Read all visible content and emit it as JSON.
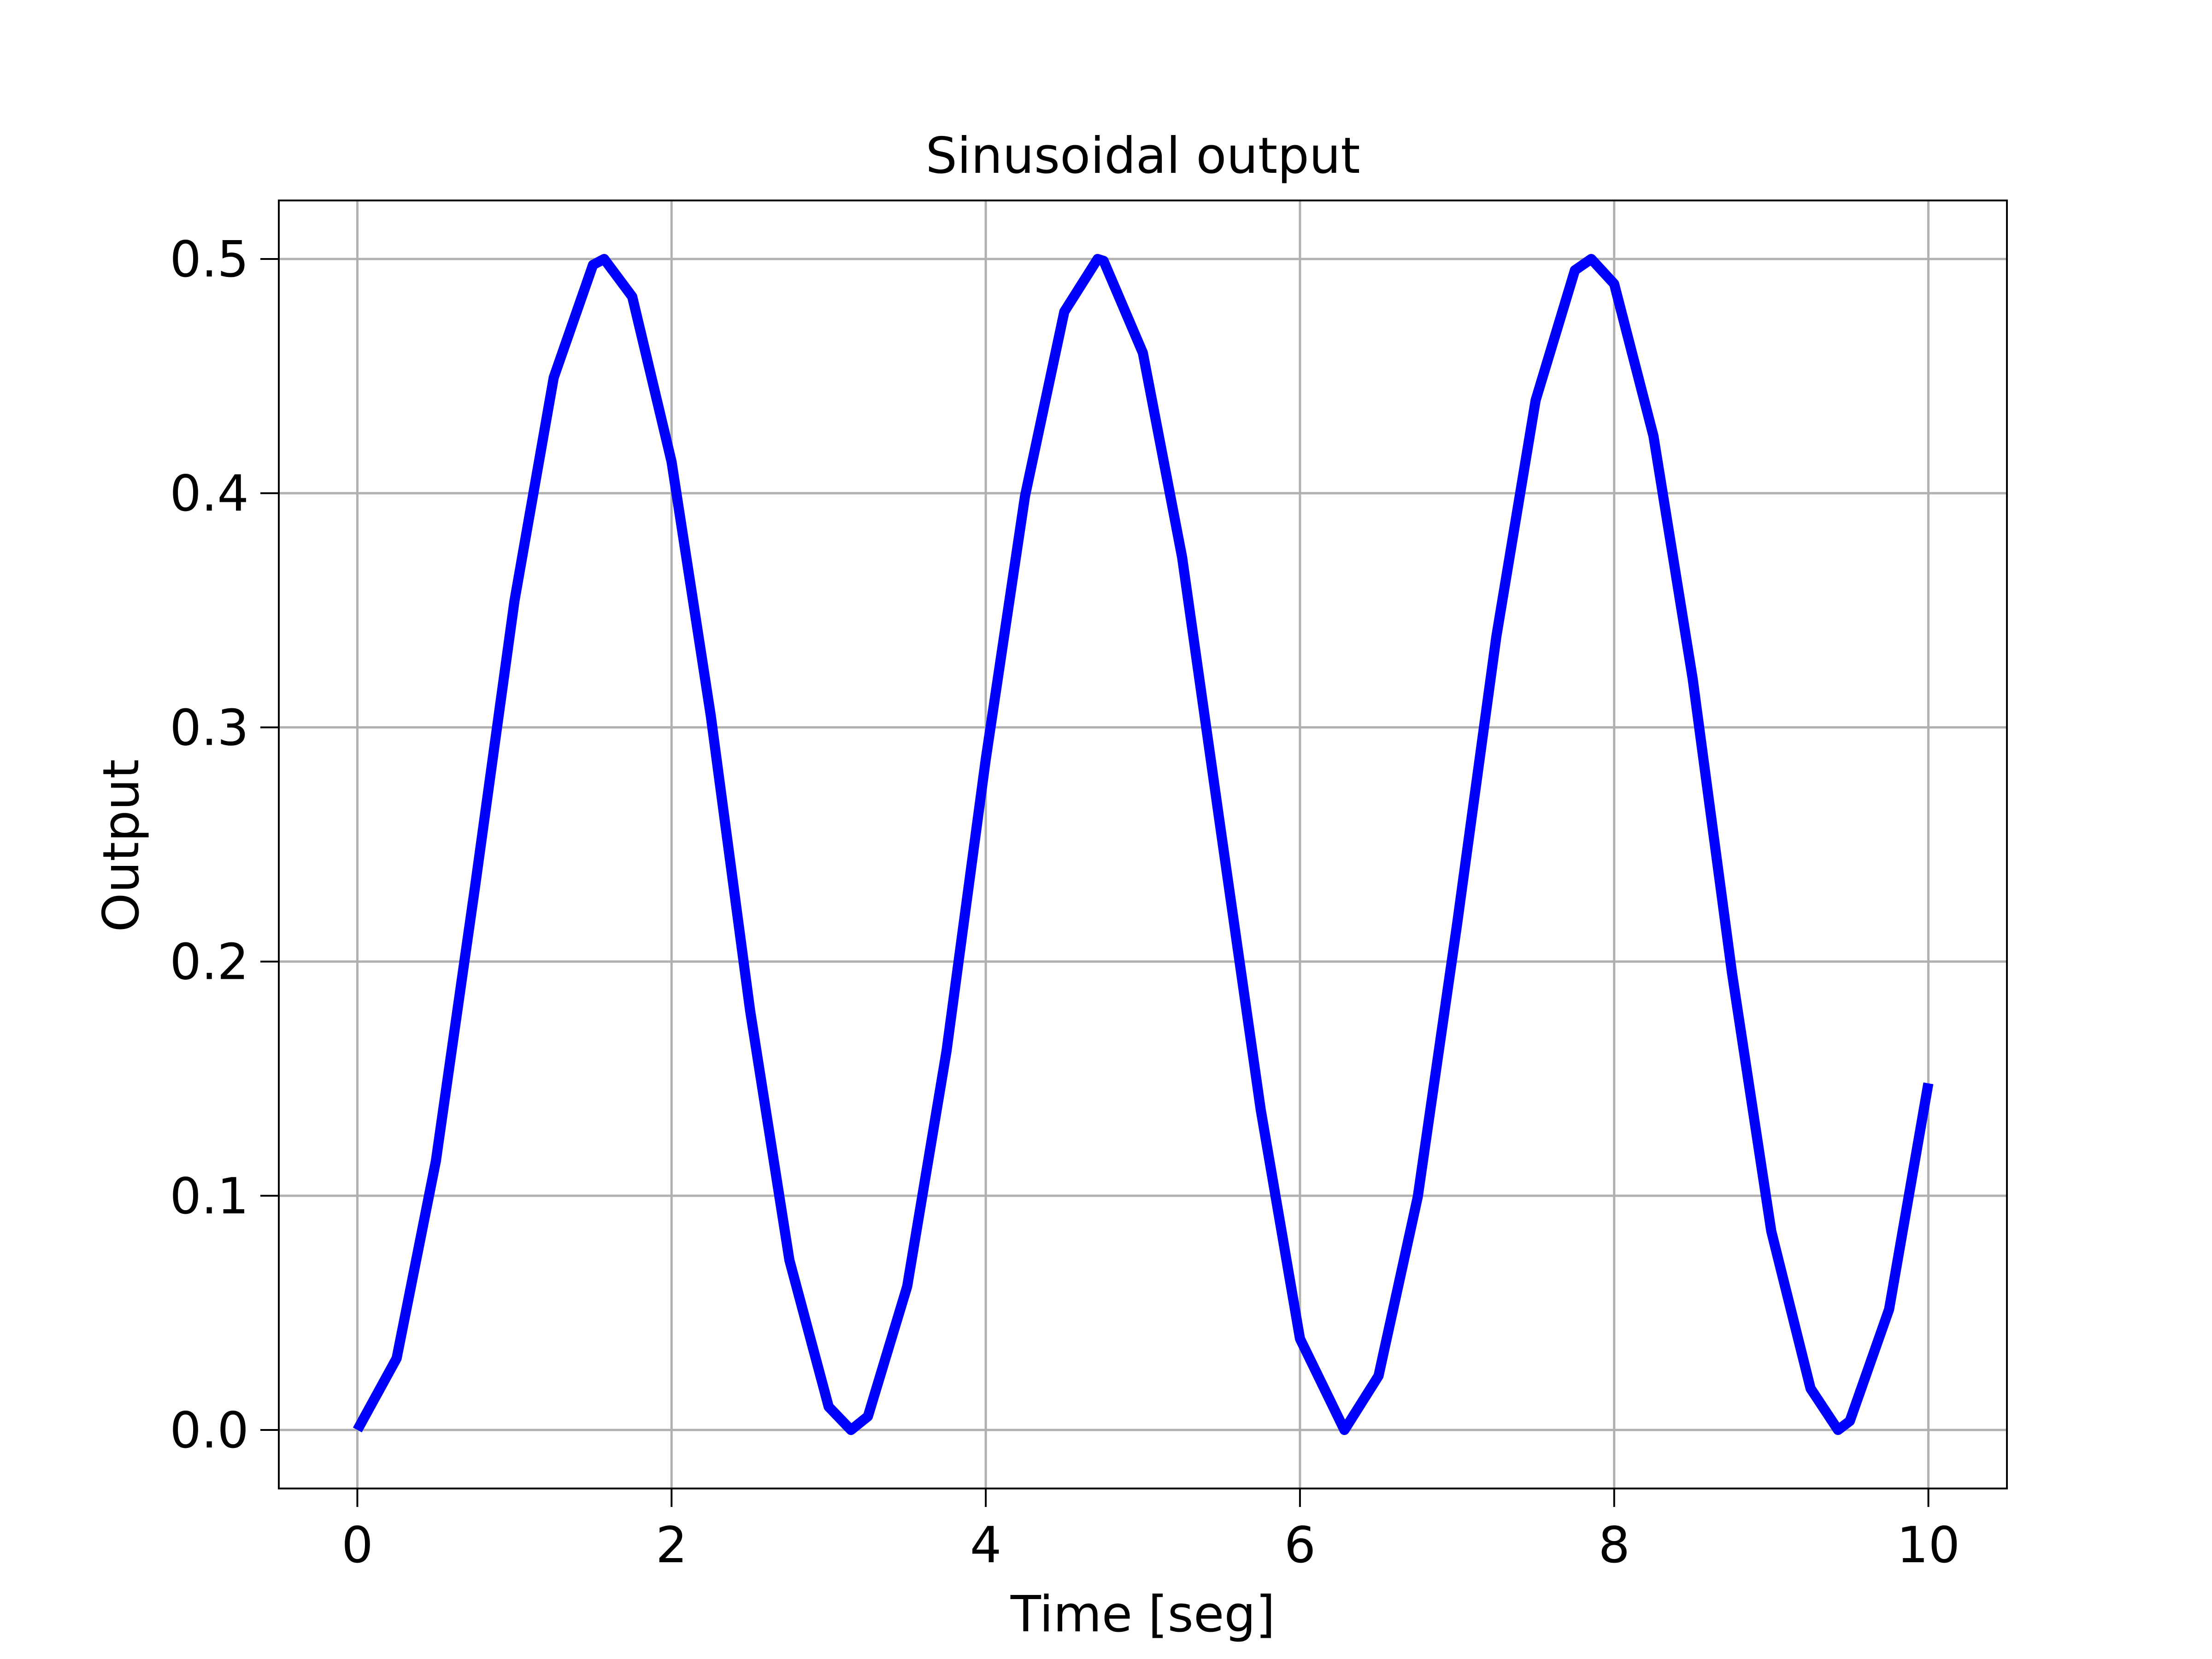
{
  "chart_data": {
    "type": "line",
    "title": "Sinusoidal output",
    "xlabel": "Time [seg]",
    "ylabel": "Output",
    "xlim": [
      -0.5,
      10.5
    ],
    "ylim": [
      -0.025,
      0.525
    ],
    "xticks": [
      0,
      2,
      4,
      6,
      8,
      10
    ],
    "xtick_labels": [
      "0",
      "2",
      "4",
      "6",
      "8",
      "10"
    ],
    "yticks": [
      0.0,
      0.1,
      0.2,
      0.3,
      0.4,
      0.5
    ],
    "ytick_labels": [
      "0.0",
      "0.1",
      "0.2",
      "0.3",
      "0.4",
      "0.5"
    ],
    "grid": true,
    "series": [
      {
        "color": "#0000ff",
        "x": [
          0.0,
          0.25,
          0.5,
          0.75,
          1.0,
          1.25,
          1.5,
          1.571,
          1.75,
          2.0,
          2.25,
          2.5,
          2.75,
          3.0,
          3.142,
          3.25,
          3.5,
          3.75,
          4.0,
          4.25,
          4.5,
          4.712,
          4.75,
          5.0,
          5.25,
          5.5,
          5.75,
          6.0,
          6.283,
          6.5,
          6.75,
          7.0,
          7.25,
          7.5,
          7.75,
          7.854,
          8.0,
          8.25,
          8.5,
          8.75,
          9.0,
          9.25,
          9.425,
          9.5,
          9.75,
          10.0
        ],
        "y": [
          0.0,
          0.0306,
          0.1149,
          0.2323,
          0.354,
          0.4494,
          0.4975,
          0.5,
          0.4839,
          0.4134,
          0.3048,
          0.1791,
          0.0725,
          0.0099,
          0.0,
          0.0058,
          0.0613,
          0.1617,
          0.2864,
          0.3988,
          0.4775,
          0.5,
          0.4992,
          0.4599,
          0.3726,
          0.2541,
          0.1368,
          0.039,
          0.0,
          0.0231,
          0.0996,
          0.2159,
          0.3387,
          0.4397,
          0.4952,
          0.5,
          0.4894,
          0.4244,
          0.3206,
          0.1951,
          0.0849,
          0.0177,
          0.0,
          0.0038,
          0.0515,
          0.148
        ]
      }
    ]
  }
}
